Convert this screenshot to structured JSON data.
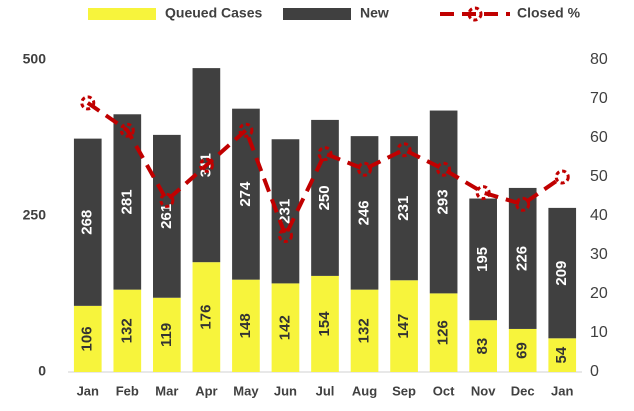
{
  "chart_data": {
    "type": "bar",
    "stacked": true,
    "categories": [
      "Jan",
      "Feb",
      "Mar",
      "Apr",
      "May",
      "Jun",
      "Jul",
      "Aug",
      "Sep",
      "Oct",
      "Nov",
      "Dec",
      "Jan"
    ],
    "series": [
      {
        "name": "Queued Cases",
        "color": "#f7f43c",
        "values": [
          106,
          132,
          119,
          176,
          148,
          142,
          154,
          132,
          147,
          126,
          83,
          69,
          54
        ]
      },
      {
        "name": "New",
        "color": "#404040",
        "values": [
          268,
          281,
          261,
          311,
          274,
          231,
          250,
          246,
          231,
          293,
          195,
          226,
          209
        ]
      },
      {
        "name": "Closed %",
        "color": "#c00000",
        "type": "line",
        "axis": "y2",
        "values": [
          69,
          62,
          44,
          53,
          62,
          35,
          56,
          52,
          57,
          52,
          46,
          43,
          50
        ]
      }
    ],
    "ylim": [
      0,
      500
    ],
    "yticks": [
      0,
      250,
      500
    ],
    "y2lim": [
      0,
      80
    ],
    "y2ticks": [
      0,
      10,
      20,
      30,
      40,
      50,
      60,
      70,
      80
    ],
    "grid": false,
    "legend": "top"
  }
}
